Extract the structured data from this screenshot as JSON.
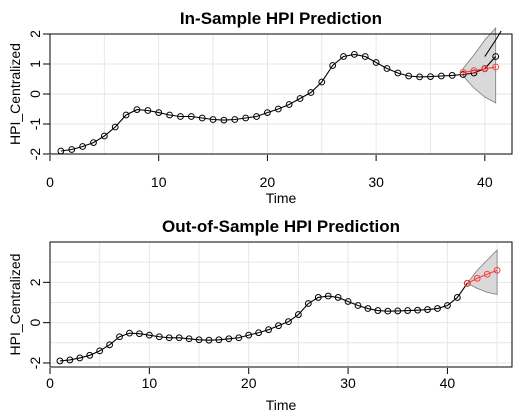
{
  "chart_data": [
    {
      "type": "line",
      "title": "In-Sample HPI Prediction",
      "xlabel": "Time",
      "ylabel": "HPI_Centralized",
      "xlim": [
        0,
        42.5
      ],
      "ylim": [
        -2,
        2
      ],
      "xticks": [
        0,
        10,
        20,
        30,
        40
      ],
      "yticks": [
        -2,
        -1,
        0,
        1,
        2
      ],
      "grid": true,
      "series": [
        {
          "color": "#000000",
          "x": [
            1,
            2,
            3,
            4,
            5,
            6,
            7,
            8,
            9,
            10,
            11,
            12,
            13,
            14,
            15,
            16,
            17,
            18,
            19,
            20,
            21,
            22,
            23,
            24,
            25,
            26,
            27,
            28,
            29,
            30,
            31,
            32,
            33,
            34,
            35,
            36,
            37,
            38,
            39,
            40,
            41
          ],
          "y": [
            -1.9,
            -1.85,
            -1.75,
            -1.62,
            -1.4,
            -1.1,
            -0.7,
            -0.52,
            -0.55,
            -0.62,
            -0.7,
            -0.75,
            -0.75,
            -0.8,
            -0.85,
            -0.87,
            -0.85,
            -0.8,
            -0.75,
            -0.62,
            -0.5,
            -0.35,
            -0.15,
            0.05,
            0.4,
            0.95,
            1.25,
            1.32,
            1.25,
            1.05,
            0.85,
            0.7,
            0.6,
            0.57,
            0.58,
            0.6,
            0.62,
            0.65,
            0.7,
            0.85,
            1.25
          ]
        },
        {
          "color": "#ff3b3b",
          "x": [
            38,
            39,
            40,
            41
          ],
          "y": [
            0.72,
            0.78,
            0.84,
            0.9
          ]
        }
      ],
      "band": {
        "x": [
          38,
          39,
          40,
          41
        ],
        "lower": [
          0.6,
          0.2,
          -0.1,
          -0.3
        ],
        "upper": [
          0.85,
          1.3,
          1.8,
          2.2
        ]
      },
      "black_tail": {
        "x": [
          40,
          41,
          41.5
        ],
        "y": [
          1.25,
          1.8,
          2.1
        ]
      }
    },
    {
      "type": "line",
      "title": "Out-of-Sample HPI Prediction",
      "xlabel": "Time",
      "ylabel": "HPI_Centralized",
      "xlim": [
        0,
        46.5
      ],
      "ylim": [
        -2.2,
        4
      ],
      "xticks": [
        0,
        10,
        20,
        30,
        40
      ],
      "yticks": [
        -2,
        0,
        2
      ],
      "grid": true,
      "series": [
        {
          "color": "#000000",
          "x": [
            1,
            2,
            3,
            4,
            5,
            6,
            7,
            8,
            9,
            10,
            11,
            12,
            13,
            14,
            15,
            16,
            17,
            18,
            19,
            20,
            21,
            22,
            23,
            24,
            25,
            26,
            27,
            28,
            29,
            30,
            31,
            32,
            33,
            34,
            35,
            36,
            37,
            38,
            39,
            40,
            41,
            42
          ],
          "y": [
            -1.9,
            -1.85,
            -1.75,
            -1.62,
            -1.4,
            -1.1,
            -0.7,
            -0.52,
            -0.55,
            -0.62,
            -0.7,
            -0.75,
            -0.75,
            -0.8,
            -0.85,
            -0.87,
            -0.85,
            -0.8,
            -0.75,
            -0.62,
            -0.5,
            -0.35,
            -0.15,
            0.05,
            0.4,
            0.95,
            1.25,
            1.32,
            1.25,
            1.05,
            0.85,
            0.7,
            0.6,
            0.57,
            0.58,
            0.6,
            0.62,
            0.65,
            0.7,
            0.85,
            1.25,
            1.95
          ]
        },
        {
          "color": "#ff3b3b",
          "x": [
            42,
            43,
            44,
            45
          ],
          "y": [
            1.95,
            2.2,
            2.4,
            2.6
          ]
        }
      ],
      "band": {
        "x": [
          42,
          43,
          44,
          45
        ],
        "lower": [
          1.95,
          1.7,
          1.5,
          1.4
        ],
        "upper": [
          1.95,
          2.6,
          3.1,
          3.6
        ]
      }
    }
  ]
}
